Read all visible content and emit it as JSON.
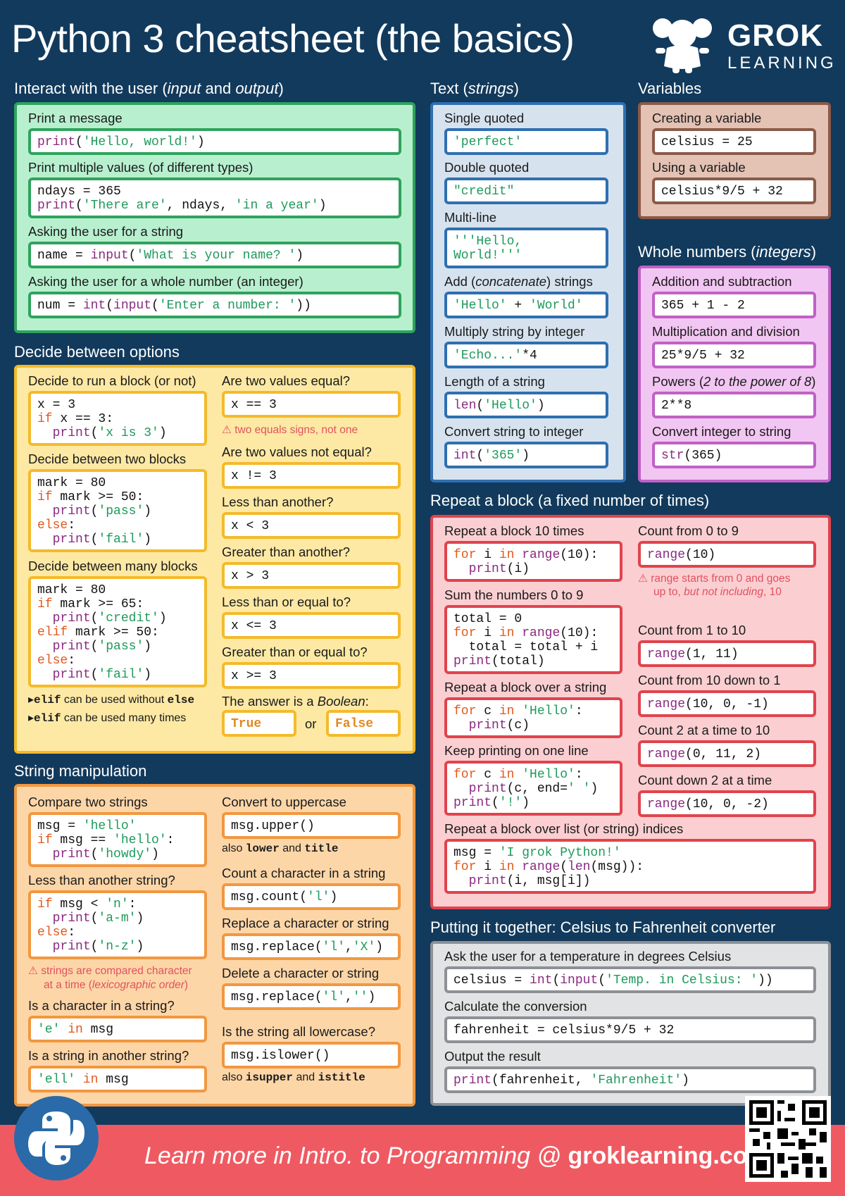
{
  "header": {
    "title": "Python 3 cheatsheet (the basics)",
    "brand": "GROK",
    "brand_sub": "LEARNING"
  },
  "interact": {
    "title": "Interact with the user (",
    "title_i1": "input",
    "title_mid": " and ",
    "title_i2": "output",
    "title_end": ")",
    "l1": "Print a message",
    "l2": "Print multiple values (of different types)",
    "l3": "Asking the user for a string",
    "l4": "Asking the user for a whole number (an integer)"
  },
  "decide": {
    "title": "Decide between options",
    "l_run": "Decide to run a block (or not)",
    "l_two": "Decide between two blocks",
    "l_many": "Decide between many blocks",
    "l_eq": "Are two values equal?",
    "warn_eq": "⚠ two equals signs, not one",
    "l_neq": "Are two values not equal?",
    "l_lt": "Less than another?",
    "l_gt": "Greater than another?",
    "l_le": "Less than or equal to?",
    "l_ge": "Greater than or equal to?",
    "l_bool": "The answer is a ",
    "l_bool_i": "Boolean",
    "l_bool_end": ":",
    "or": "or",
    "n1_code": "elif",
    "n1_text": " can be used without ",
    "n1_code2": "else",
    "n2_code": "elif",
    "n2_text": " can be used many times",
    "bullet": "▸"
  },
  "strman": {
    "title": "String manipulation",
    "l_cmp": "Compare two strings",
    "l_less": "Less than another string?",
    "warn1": "⚠ strings are compared character",
    "warn2": "at a time (",
    "warn2_i": "lexicographic order",
    "warn2_end": ")",
    "l_in": "Is a character in a string?",
    "l_sin": "Is a string in another string?",
    "l_upper": "Convert to uppercase",
    "also1": "also ",
    "also1_a": "lower",
    "also1_and": " and ",
    "also1_b": "title",
    "l_count": "Count a character in  a string",
    "l_replace": "Replace a character or string",
    "l_delete": "Delete a character or string",
    "l_lower": "Is the string all lowercase?",
    "also2": "also ",
    "also2_a": "isupper",
    "also2_and": " and ",
    "also2_b": "istitle"
  },
  "text": {
    "title": "Text (",
    "title_i": "strings",
    "title_end": ")",
    "l1": "Single quoted",
    "l2": "Double quoted",
    "l3": "Multi-line",
    "l4": "Add (",
    "l4_i": "concatenate",
    "l4_end": ") strings",
    "l5": "Multiply string by integer",
    "l6": "Length of a string",
    "l7": "Convert string to integer"
  },
  "vars": {
    "title": "Variables",
    "l1": "Creating a variable",
    "l2": "Using a variable"
  },
  "ints": {
    "title": "Whole numbers (",
    "title_i": "integers",
    "title_end": ")",
    "l1": "Addition and subtraction",
    "l2": "Multiplication and division",
    "l3": "Powers (",
    "l3_i": "2 to the power of 8",
    "l3_end": ")",
    "l4": "Convert integer to string"
  },
  "repeat": {
    "title": "Repeat a block (a fixed number of times)",
    "l1": "Repeat a block 10 times",
    "l2": "Sum the numbers 0 to 9",
    "l3": "Repeat a block over a string",
    "l4": "Keep printing on one line",
    "l5": "Repeat a block over list (or string) indices",
    "r1": "Count from 0 to 9",
    "warn1": "⚠ range starts from 0 and goes",
    "warn2": "up to, ",
    "warn2_i": "but not including",
    "warn2_end": ", 10",
    "r2": "Count from 1 to 10",
    "r3": "Count from 10 down to 1",
    "r4": "Count 2 at a time to 10",
    "r5": "Count down 2 at a time"
  },
  "together": {
    "title": "Putting it together: Celsius to Fahrenheit converter",
    "l1": "Ask the user for a temperature in degrees Celsius",
    "l2": "Calculate the conversion",
    "l3": "Output the result"
  },
  "footer": {
    "text": "Learn more in Intro. to Programming @ ",
    "site": "groklearning.com"
  },
  "colors": {
    "bg": "#123a5c",
    "green": "#2fa35d",
    "green_bg": "#b8f0cf",
    "yellow": "#f4ba2a",
    "yellow_bg": "#fde9a4",
    "orange": "#f2973f",
    "orange_bg": "#fdd6a8",
    "blue": "#2f6fb0",
    "blue_bg": "#d6e3ef",
    "brown": "#8b5a48",
    "brown_bg": "#e4c2b4",
    "pink": "#c061c6",
    "pink_bg": "#f2c6f2",
    "red": "#e0434d",
    "red_bg": "#fbcfd2",
    "gray": "#8d9094",
    "gray_bg": "#e2e3e4",
    "footer": "#ef5a62"
  }
}
